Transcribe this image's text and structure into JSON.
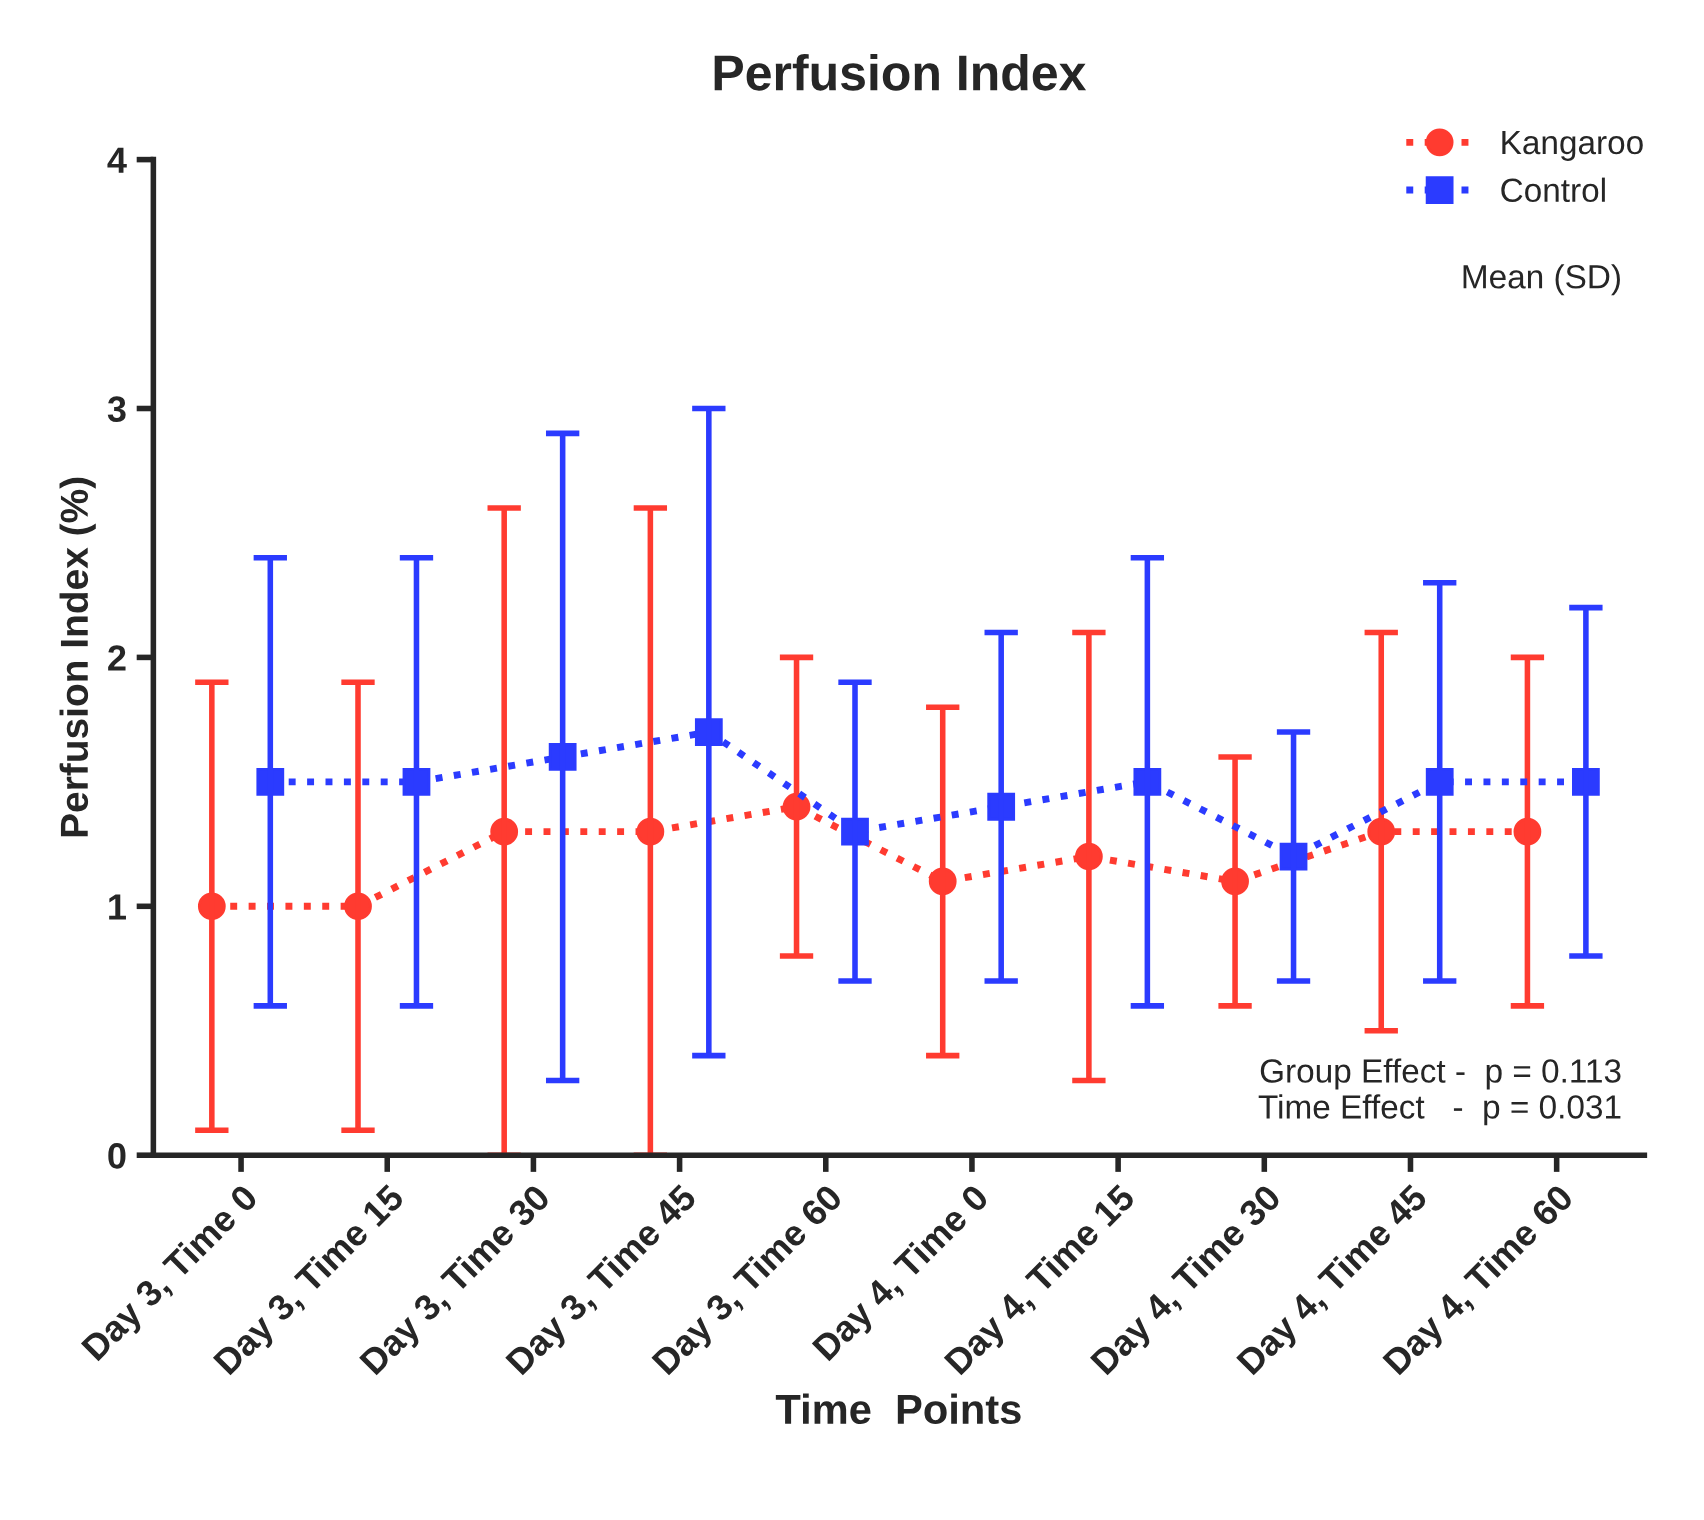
{
  "chart_data": {
    "type": "line",
    "title": "Perfusion Index",
    "xlabel": "Time  Points",
    "ylabel": "Perfusion Index (%)",
    "categories": [
      "Day 3, Time 0",
      "Day 3, Time 15",
      "Day 3, Time 30",
      "Day 3, Time 45",
      "Day 3, Time 60",
      "Day 4, Time 0",
      "Day 4, Time 15",
      "Day 4, Time 30",
      "Day 4, Time 45",
      "Day 4, Time 60"
    ],
    "series": [
      {
        "name": "Kangaroo",
        "color": "#ff3b30",
        "marker": "circle",
        "values": [
          1.0,
          1.0,
          1.3,
          1.3,
          1.4,
          1.1,
          1.2,
          1.1,
          1.3,
          1.3
        ],
        "errors": [
          0.9,
          0.9,
          1.3,
          1.3,
          0.6,
          0.7,
          0.9,
          0.5,
          0.8,
          0.7
        ]
      },
      {
        "name": "Control",
        "color": "#2b3bff",
        "marker": "square",
        "values": [
          1.5,
          1.5,
          1.6,
          1.7,
          1.3,
          1.4,
          1.5,
          1.2,
          1.5,
          1.5
        ],
        "errors": [
          0.9,
          0.9,
          1.3,
          1.3,
          0.6,
          0.7,
          0.9,
          0.5,
          0.8,
          0.7
        ]
      }
    ],
    "line_style": "dotted",
    "ylim": [
      0,
      4
    ],
    "yticks": [
      0,
      1,
      2,
      3,
      4
    ],
    "grid": false,
    "legend": "top right",
    "annotations": [
      "Mean (SD)",
      "Group Effect -  p = 0.113\nTime Effect   -  p = 0.031"
    ]
  }
}
